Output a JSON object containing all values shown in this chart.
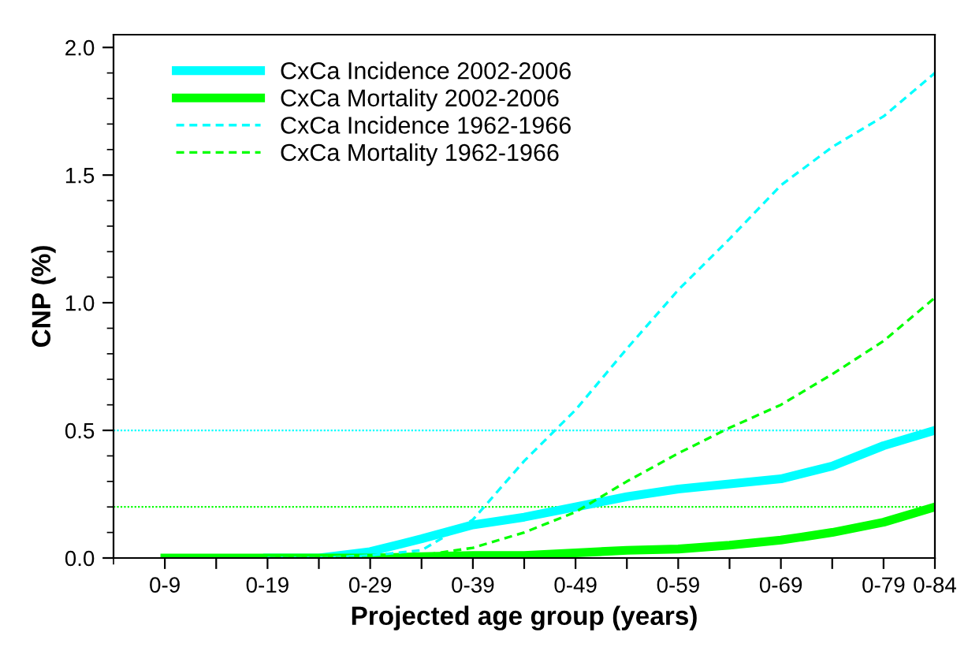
{
  "chart_data": {
    "type": "line",
    "xlabel": "Projected age group (years)",
    "ylabel": "CNP (%)",
    "ylim": [
      0,
      2.05
    ],
    "categories": [
      "0-9",
      null,
      "0-19",
      null,
      "0-29",
      null,
      "0-39",
      null,
      "0-49",
      null,
      "0-59",
      null,
      "0-69",
      null,
      "0-79",
      "0-84"
    ],
    "yticks": [
      {
        "value": 0,
        "label": "0.0"
      },
      {
        "value": 0.5,
        "label": "0.5"
      },
      {
        "value": 1,
        "label": "1.0"
      },
      {
        "value": 1.5,
        "label": "1.5"
      },
      {
        "value": 2,
        "label": "2.0"
      }
    ],
    "series": [
      {
        "name": "CxCa Incidence 2002-2006",
        "color": "#00ffff",
        "line_style": "solid",
        "values": [
          null,
          null,
          0,
          0,
          0.025,
          0.075,
          0.13,
          0.16,
          0.2,
          0.24,
          0.27,
          0.29,
          0.31,
          0.36,
          0.44,
          0.5
        ]
      },
      {
        "name": "CxCa Mortality 2002-2006",
        "color": "#00ff00",
        "line_style": "solid",
        "values": [
          0,
          0,
          0,
          0,
          0,
          0.005,
          0.01,
          0.01,
          0.02,
          0.03,
          0.035,
          0.05,
          0.07,
          0.1,
          0.14,
          0.2
        ]
      },
      {
        "name": "CxCa Incidence 1962-1966",
        "color": "#00ffff",
        "line_style": "dashed",
        "values": [
          null,
          null,
          0,
          0,
          0.01,
          0.03,
          0.15,
          0.38,
          0.58,
          0.82,
          1.05,
          1.25,
          1.46,
          1.61,
          1.73,
          1.9
        ]
      },
      {
        "name": "CxCa Mortality 1962-1966",
        "color": "#00ff00",
        "line_style": "dashed",
        "values": [
          0,
          0,
          0,
          0,
          0,
          0.01,
          0.04,
          0.1,
          0.18,
          0.3,
          0.41,
          0.51,
          0.6,
          0.72,
          0.85,
          1.02
        ]
      }
    ],
    "ref_lines": [
      {
        "axis": "y",
        "value": 0.5,
        "color": "#00ffff",
        "line_style": "dotted"
      },
      {
        "axis": "y",
        "value": 0.2,
        "color": "#00ff00",
        "line_style": "dotted"
      }
    ],
    "legend": "top left",
    "grid": false
  }
}
